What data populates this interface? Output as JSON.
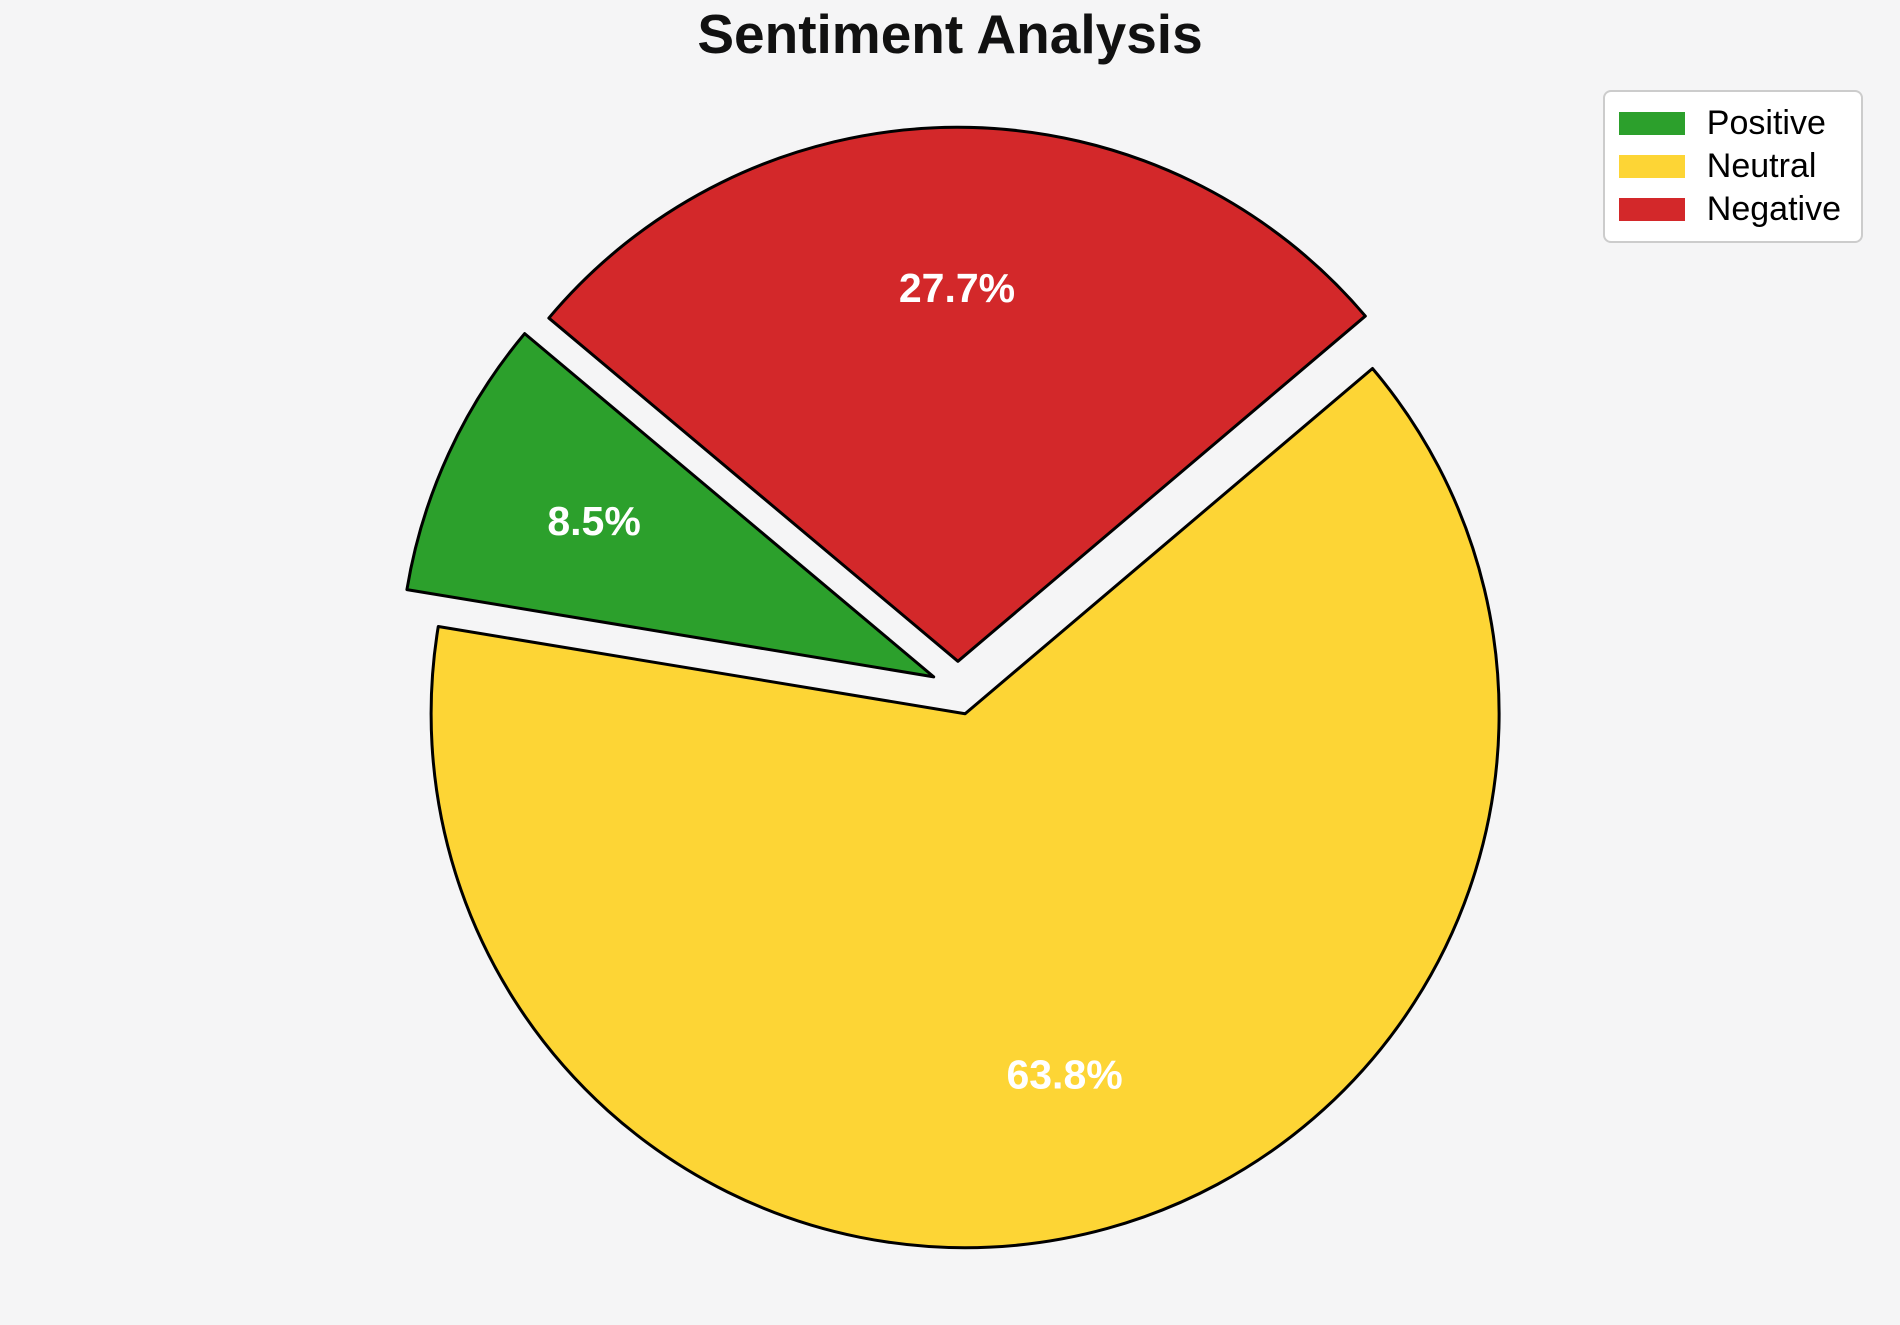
{
  "figure": {
    "background_color": "#f5f5f6"
  },
  "chart_data": {
    "type": "pie",
    "title": "Sentiment Analysis",
    "labels": [
      "Positive",
      "Neutral",
      "Negative"
    ],
    "values": [
      8.5,
      63.8,
      27.7
    ],
    "percent_labels": [
      "8.5%",
      "63.8%",
      "27.7%"
    ],
    "colors": [
      "#2ca02c",
      "#fdd535",
      "#d3282a"
    ],
    "start_angle": 140,
    "counterclockwise": true,
    "explode": 0.05,
    "pct_distance": 0.7,
    "wedge_edge_color": "#000000",
    "percent_label_color": "#ffffff",
    "legend_position": "upper right",
    "grid": false
  },
  "legend": {
    "items": [
      {
        "label": "Positive",
        "color": "#2ca02c"
      },
      {
        "label": "Neutral",
        "color": "#fdd535"
      },
      {
        "label": "Negative",
        "color": "#d3282a"
      }
    ]
  }
}
